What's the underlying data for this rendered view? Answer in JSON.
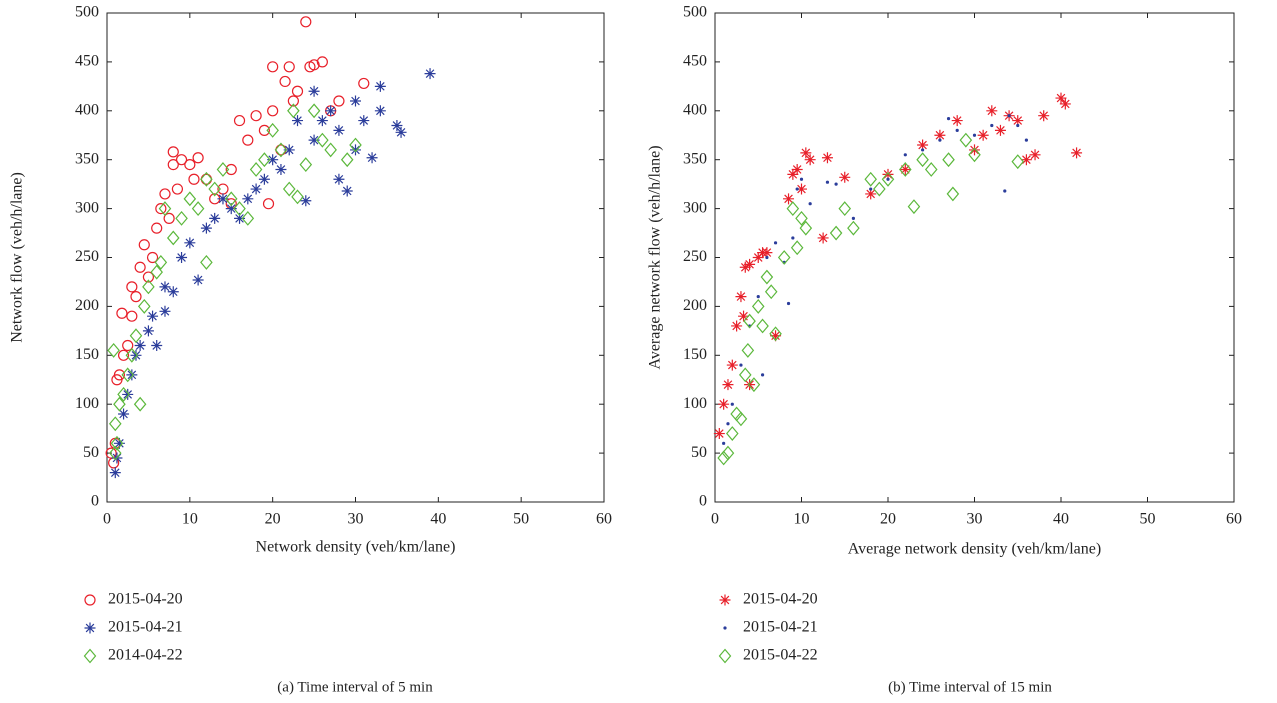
{
  "chart_data": [
    {
      "type": "scatter",
      "xlabel": "Network density (veh/km/lane)",
      "ylabel": "Network flow (veh/h/lane)",
      "caption": "(a)  Time interval of 5 min",
      "xlim": [
        0,
        60
      ],
      "xticks": [
        0,
        10,
        20,
        30,
        40,
        50,
        60
      ],
      "ylim": [
        0,
        500
      ],
      "yticks": [
        0,
        50,
        100,
        150,
        200,
        250,
        300,
        350,
        400,
        450,
        500
      ],
      "legend": "bottom",
      "series": [
        {
          "name": "2015-04-20",
          "color": "#e8202a",
          "marker": "circle",
          "x": [
            0.5,
            0.8,
            1,
            1.2,
            1.5,
            1.8,
            2,
            2.5,
            3,
            3,
            3.5,
            4,
            4.5,
            5,
            5.5,
            6,
            6.5,
            7,
            7.5,
            8,
            8,
            8.5,
            9,
            10,
            10.5,
            11,
            12,
            13,
            14,
            15,
            16,
            17,
            18,
            19,
            20,
            20,
            21,
            21.5,
            22,
            22.5,
            23,
            24,
            24.5,
            25,
            26,
            27,
            28,
            31,
            19.5,
            15
          ],
          "values": [
            50,
            40,
            60,
            125,
            130,
            193,
            150,
            160,
            190,
            220,
            210,
            240,
            263,
            230,
            250,
            280,
            300,
            315,
            290,
            358,
            345,
            320,
            350,
            345,
            330,
            352,
            330,
            310,
            320,
            340,
            390,
            370,
            395,
            380,
            445,
            400,
            360,
            430,
            445,
            410,
            420,
            491,
            445,
            447,
            450,
            400,
            410,
            428,
            305,
            305
          ]
        },
        {
          "name": "2015-04-21",
          "color": "#2b3d9b",
          "marker": "star",
          "x": [
            1,
            1.2,
            1.5,
            2,
            2.5,
            3,
            3.5,
            4,
            5,
            5.5,
            6,
            7,
            7,
            8,
            9,
            10,
            11,
            12,
            13,
            14,
            15,
            16,
            17,
            18,
            19,
            20,
            21,
            22,
            23,
            24,
            25,
            25,
            26,
            27,
            28,
            28,
            29,
            30,
            30,
            31,
            32,
            33,
            33,
            35,
            35.5,
            39
          ],
          "values": [
            30,
            45,
            60,
            90,
            110,
            130,
            150,
            160,
            175,
            190,
            160,
            195,
            220,
            215,
            250,
            265,
            227,
            280,
            290,
            310,
            300,
            290,
            310,
            320,
            330,
            350,
            340,
            360,
            390,
            308,
            370,
            420,
            390,
            400,
            380,
            330,
            318,
            410,
            360,
            390,
            352,
            425,
            400,
            385,
            378,
            438
          ]
        },
        {
          "name": "2014-04-22",
          "color": "#5cb83c",
          "marker": "diamond",
          "x": [
            0.8,
            1,
            1,
            1.2,
            1.5,
            2,
            2.5,
            3,
            3.5,
            4,
            4.5,
            5,
            6,
            6.5,
            7,
            8,
            9,
            10,
            11,
            12,
            12,
            13,
            14,
            15,
            16,
            17,
            18,
            19,
            20,
            21,
            22,
            22.5,
            23,
            24,
            25,
            26,
            27,
            29,
            30
          ],
          "values": [
            155,
            50,
            80,
            60,
            100,
            110,
            130,
            150,
            170,
            100,
            200,
            220,
            235,
            245,
            300,
            270,
            290,
            310,
            300,
            245,
            330,
            320,
            340,
            310,
            300,
            290,
            340,
            350,
            380,
            360,
            320,
            400,
            312,
            345,
            400,
            370,
            360,
            350,
            365
          ]
        }
      ]
    },
    {
      "type": "scatter",
      "xlabel": "Average network density (veh/km/lane)",
      "ylabel": "Average network flow (veh/h/lane)",
      "caption": "(b)  Time interval of 15 min",
      "xlim": [
        0,
        60
      ],
      "xticks": [
        0,
        10,
        20,
        30,
        40,
        50,
        60
      ],
      "ylim": [
        0,
        500
      ],
      "yticks": [
        0,
        50,
        100,
        150,
        200,
        250,
        300,
        350,
        400,
        450,
        500
      ],
      "legend": "bottom",
      "series": [
        {
          "name": "2015-04-20",
          "color": "#e8202a",
          "marker": "star",
          "x": [
            0.5,
            1,
            1.5,
            2,
            2.5,
            3,
            3.3,
            3.5,
            4,
            4,
            5,
            5.5,
            6,
            7,
            8.5,
            9,
            9.5,
            10,
            10.5,
            11,
            12.5,
            13,
            15,
            18,
            20,
            22,
            24,
            26,
            28,
            30,
            31,
            32,
            33,
            34,
            35,
            36,
            37,
            38,
            40,
            40.5,
            41.8
          ],
          "values": [
            70,
            100,
            120,
            140,
            180,
            210,
            190,
            240,
            243,
            120,
            250,
            255,
            255,
            170,
            310,
            335,
            340,
            320,
            357,
            350,
            270,
            352,
            332,
            315,
            335,
            340,
            365,
            375,
            390,
            360,
            375,
            400,
            380,
            395,
            390,
            350,
            355,
            395,
            413,
            407,
            357
          ]
        },
        {
          "name": "2015-04-21",
          "color": "#2b3d9b",
          "marker": "dot",
          "x": [
            1,
            1.5,
            2,
            3,
            4,
            5,
            5.5,
            6,
            7,
            8,
            8.5,
            9,
            9.5,
            10,
            11,
            13,
            14,
            16,
            18,
            20,
            22,
            24,
            26,
            27,
            28,
            30,
            32,
            33.5,
            34,
            35,
            36
          ],
          "values": [
            60,
            80,
            100,
            140,
            180,
            210,
            130,
            250,
            265,
            245,
            203,
            270,
            320,
            330,
            305,
            327,
            325,
            290,
            320,
            330,
            355,
            360,
            370,
            392,
            380,
            375,
            385,
            318,
            395,
            385,
            370
          ]
        },
        {
          "name": "2015-04-22",
          "color": "#5cb83c",
          "marker": "diamond",
          "x": [
            1,
            1.5,
            2,
            2.5,
            3,
            3.5,
            3.8,
            4,
            4.5,
            5,
            5.5,
            6,
            6.5,
            7,
            8,
            9,
            9.5,
            10,
            10.5,
            14,
            15,
            16,
            18,
            19,
            20,
            22,
            23,
            24,
            25,
            27,
            27.5,
            29,
            30,
            35
          ],
          "values": [
            45,
            50,
            70,
            90,
            85,
            130,
            155,
            185,
            120,
            200,
            180,
            230,
            215,
            172,
            250,
            300,
            260,
            290,
            280,
            275,
            300,
            280,
            330,
            320,
            330,
            340,
            302,
            350,
            340,
            350,
            315,
            370,
            355,
            348
          ]
        }
      ]
    }
  ]
}
